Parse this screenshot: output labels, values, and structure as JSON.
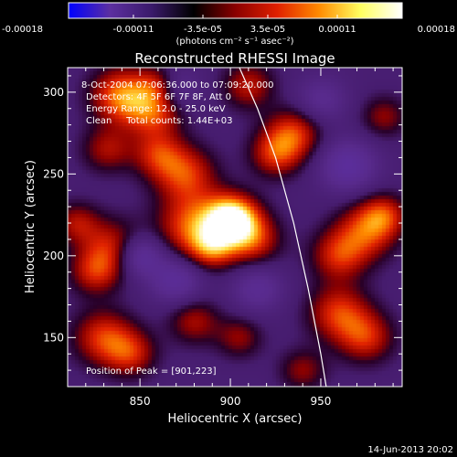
{
  "chart_data": {
    "type": "heatmap",
    "title": "Reconstructed RHESSI Image",
    "xlabel": "Heliocentric X (arcsec)",
    "ylabel": "Heliocentric Y (arcsec)",
    "xlim": [
      810,
      995
    ],
    "ylim": [
      120,
      315
    ],
    "x_ticks": [
      850,
      900,
      950
    ],
    "y_ticks": [
      150,
      200,
      250,
      300
    ],
    "colorbar": {
      "range": [
        -0.00018,
        0.00018
      ],
      "tick_labels": [
        "-0.00018",
        "-0.00011",
        "-3.5e-05",
        "3.5e-05",
        "0.00011",
        "0.00018"
      ],
      "tick_values": [
        -0.00018,
        -0.00011,
        -3.5e-05,
        3.5e-05,
        0.00011,
        0.00018
      ],
      "units": "(photons cm⁻² s⁻¹ asec⁻²)",
      "colormap": [
        "#0000ff",
        "#5c2fa0",
        "#3a1a6a",
        "#000000",
        "#8a0000",
        "#e02000",
        "#ff8a00",
        "#ffff60",
        "#ffffff"
      ]
    },
    "annotations": [
      "8-Oct-2004 07:06:36.000 to 07:09:20.000",
      "Detectors: 4F 5F 6F 7F 8F, Att 0",
      "Energy Range: 12.0 - 25.0 keV",
      "Clean     Total counts: 1.44E+03",
      "Position of Peak = [901,223]"
    ],
    "peak_position": [
      901,
      223
    ],
    "limb_curve": [
      [
        905,
        315
      ],
      [
        915,
        290
      ],
      [
        925,
        260
      ],
      [
        935,
        220
      ],
      [
        943,
        180
      ],
      [
        950,
        140
      ],
      [
        953,
        120
      ]
    ],
    "sources": [
      {
        "x": 901,
        "y": 223,
        "amp": 1.0,
        "r": 10
      },
      {
        "x": 880,
        "y": 218,
        "amp": 0.65,
        "r": 14
      },
      {
        "x": 912,
        "y": 210,
        "amp": 0.55,
        "r": 11
      },
      {
        "x": 890,
        "y": 205,
        "amp": 0.5,
        "r": 9
      },
      {
        "x": 840,
        "y": 298,
        "amp": 0.7,
        "r": 12
      },
      {
        "x": 858,
        "y": 288,
        "amp": 0.55,
        "r": 11
      },
      {
        "x": 875,
        "y": 250,
        "amp": 0.55,
        "r": 12
      },
      {
        "x": 860,
        "y": 262,
        "amp": 0.45,
        "r": 10
      },
      {
        "x": 832,
        "y": 265,
        "amp": 0.4,
        "r": 10
      },
      {
        "x": 935,
        "y": 275,
        "amp": 0.55,
        "r": 11
      },
      {
        "x": 925,
        "y": 262,
        "amp": 0.5,
        "r": 10
      },
      {
        "x": 910,
        "y": 304,
        "amp": 0.45,
        "r": 10
      },
      {
        "x": 975,
        "y": 215,
        "amp": 0.55,
        "r": 12
      },
      {
        "x": 960,
        "y": 200,
        "amp": 0.5,
        "r": 11
      },
      {
        "x": 985,
        "y": 225,
        "amp": 0.45,
        "r": 9
      },
      {
        "x": 835,
        "y": 205,
        "amp": 0.5,
        "r": 12
      },
      {
        "x": 825,
        "y": 190,
        "amp": 0.45,
        "r": 10
      },
      {
        "x": 815,
        "y": 220,
        "amp": 0.4,
        "r": 9
      },
      {
        "x": 960,
        "y": 165,
        "amp": 0.55,
        "r": 12
      },
      {
        "x": 975,
        "y": 150,
        "amp": 0.5,
        "r": 11
      },
      {
        "x": 940,
        "y": 130,
        "amp": 0.35,
        "r": 9
      },
      {
        "x": 830,
        "y": 150,
        "amp": 0.55,
        "r": 12
      },
      {
        "x": 845,
        "y": 140,
        "amp": 0.45,
        "r": 10
      },
      {
        "x": 880,
        "y": 160,
        "amp": 0.4,
        "r": 10
      },
      {
        "x": 905,
        "y": 150,
        "amp": 0.35,
        "r": 9
      },
      {
        "x": 985,
        "y": 285,
        "amp": 0.35,
        "r": 9
      },
      {
        "x": 860,
        "y": 305,
        "amp": 0.35,
        "r": 8
      },
      {
        "x": 850,
        "y": 200,
        "amp": -0.6,
        "r": 9
      },
      {
        "x": 870,
        "y": 185,
        "amp": -0.5,
        "r": 10
      },
      {
        "x": 965,
        "y": 255,
        "amp": -0.55,
        "r": 11
      },
      {
        "x": 870,
        "y": 302,
        "amp": -0.35,
        "r": 9
      },
      {
        "x": 915,
        "y": 180,
        "amp": -0.4,
        "r": 10
      },
      {
        "x": 950,
        "y": 295,
        "amp": -0.35,
        "r": 10
      }
    ]
  },
  "footer": {
    "timestamp": "14-Jun-2013 20:02"
  }
}
